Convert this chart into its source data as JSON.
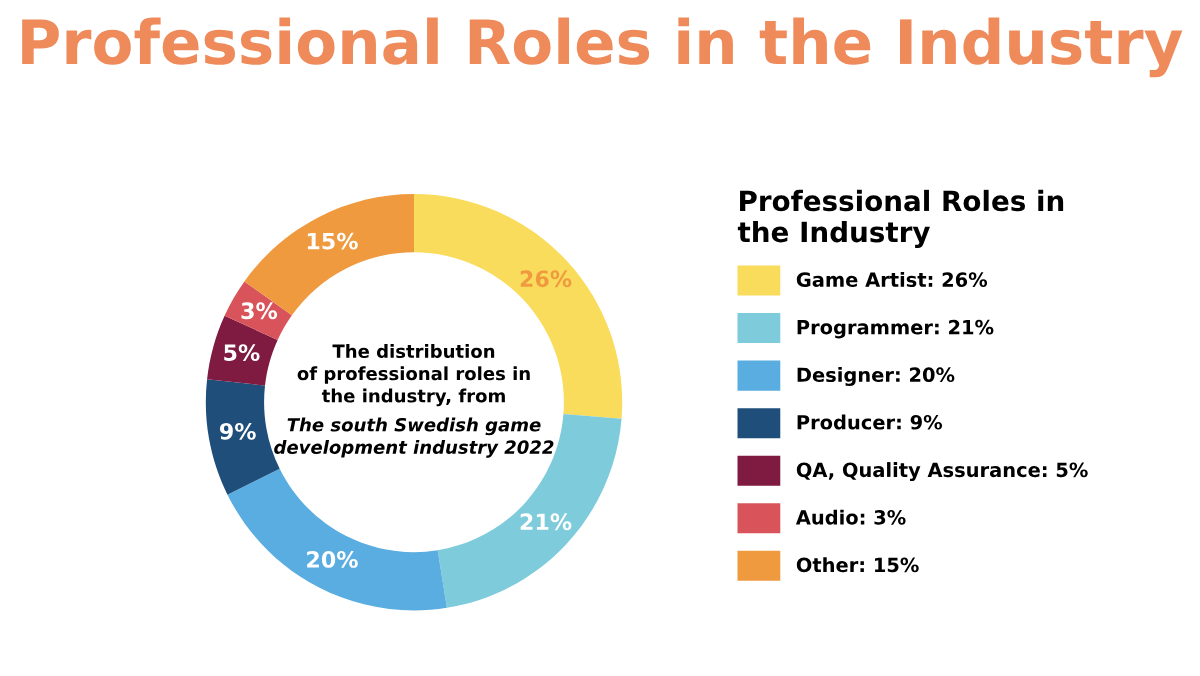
{
  "chart_data": {
    "type": "donut",
    "title": "Professional Roles in the Industry",
    "legend_title": "Professional Roles in\nthe Industry",
    "categories": [
      "Game Artist: 26%",
      "Programmer: 21%",
      "Designer: 20%",
      "Producer: 9%",
      "QA, Quality Assurance: 5%",
      "Audio: 3%",
      "Other: 15%"
    ],
    "values": [
      26,
      21,
      20,
      9,
      5,
      3,
      15
    ],
    "colors": [
      "#f9dc5c",
      "#7ecbdb",
      "#5aade0",
      "#1f4e7a",
      "#7f1a40",
      "#d9545a",
      "#f09a40"
    ],
    "value_labels": [
      "26%",
      "21%",
      "20%",
      "9%",
      "5%",
      "3%",
      "15%"
    ],
    "legend": "right",
    "annotations": [
      "The distribution\nof professional roles in\nthe industry, from",
      "The south Swedish game\ndevelopment industry 2022"
    ]
  }
}
